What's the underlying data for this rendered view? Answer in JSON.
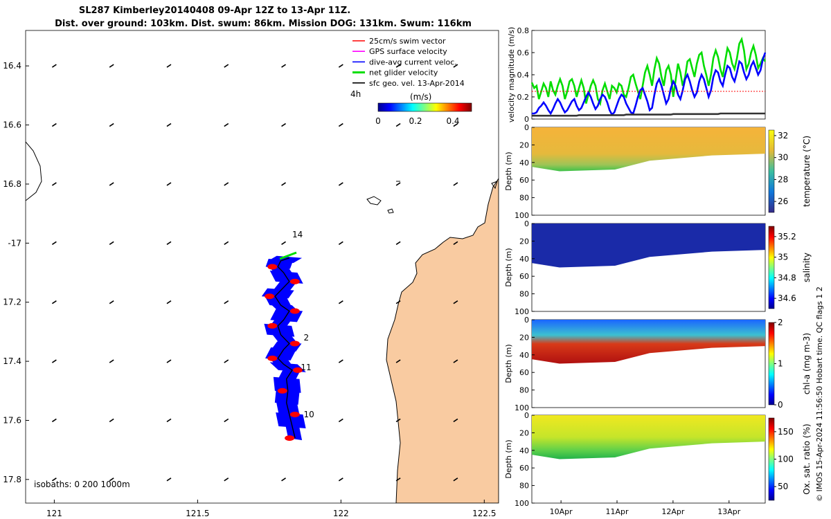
{
  "title_line1": "SL287 Kimberley20140408 09-Apr 12Z to 13-Apr 11Z.",
  "title_line2": "Dist. over ground: 103km. Dist. swum: 86km. Mission DOG: 131km. Swum: 116km",
  "credit": "© IMOS 15-Apr-2024 11:56:50 Hobart time. QC flags 1  2",
  "colors": {
    "land": "#f9cba1",
    "track_blue": "#0000ff",
    "track_red": "#ff0000",
    "swim": "#ff0000",
    "gps": "#ff00ff",
    "dive": "#0000ff",
    "net": "#00dd00",
    "sfc": "#000000"
  },
  "chart_data": [
    {
      "type": "map",
      "name": "track-map",
      "xlim": [
        120.9,
        122.55
      ],
      "ylim": [
        -17.88,
        -16.28
      ],
      "x_ticks": [
        121,
        121.5,
        122,
        122.5
      ],
      "x_tick_labels": [
        "121",
        "121.5",
        "122",
        "122.5"
      ],
      "y_ticks": [
        -16.4,
        -16.6,
        -16.8,
        -17.0,
        -17.2,
        -17.4,
        -17.6,
        -17.8
      ],
      "y_tick_labels": [
        "16.4",
        "16.6",
        "16.8",
        "-17",
        "17.2",
        "17.4",
        "17.6",
        "17.8"
      ],
      "legend": [
        {
          "label": "25cm/s swim vector",
          "color": "#ff0000"
        },
        {
          "label": "GPS surface velocity",
          "color": "#ff00ff"
        },
        {
          "label": "dive-avg current veloc.",
          "color": "#0000ff"
        },
        {
          "label": "net glider velocity",
          "color": "#00dd00"
        },
        {
          "label": "sfc geo. vel. 13-Apr-2014",
          "color": "#000000"
        }
      ],
      "legend_extra": "4h",
      "colorbar_title": "(m/s)",
      "colorbar_ticks": [
        "0",
        "0.2",
        "0.4"
      ],
      "colorbar_range": [
        0,
        0.5
      ],
      "isobath_label": "isobaths: 0   200  1000m",
      "day_labels": [
        {
          "text": "14",
          "lon": 121.83,
          "lat": -16.98
        },
        {
          "text": "2",
          "lon": 121.87,
          "lat": -17.33
        },
        {
          "text": "11",
          "lon": 121.86,
          "lat": -17.43
        },
        {
          "text": "10",
          "lon": 121.87,
          "lat": -17.59
        }
      ],
      "track": [
        [
          121.84,
          -17.66
        ],
        [
          121.83,
          -17.62
        ],
        [
          121.82,
          -17.58
        ],
        [
          121.81,
          -17.54
        ],
        [
          121.815,
          -17.5
        ],
        [
          121.81,
          -17.46
        ],
        [
          121.83,
          -17.43
        ],
        [
          121.8,
          -17.41
        ],
        [
          121.78,
          -17.39
        ],
        [
          121.8,
          -17.36
        ],
        [
          121.82,
          -17.34
        ],
        [
          121.79,
          -17.31
        ],
        [
          121.78,
          -17.28
        ],
        [
          121.8,
          -17.26
        ],
        [
          121.82,
          -17.23
        ],
        [
          121.79,
          -17.21
        ],
        [
          121.77,
          -17.18
        ],
        [
          121.79,
          -17.16
        ],
        [
          121.82,
          -17.13
        ],
        [
          121.8,
          -17.1
        ],
        [
          121.78,
          -17.08
        ],
        [
          121.79,
          -17.06
        ],
        [
          121.82,
          -17.05
        ]
      ],
      "geo_vel_grid_lon": [
        121.0,
        121.2,
        121.4,
        121.6,
        121.8,
        122.0,
        122.2,
        122.4
      ],
      "geo_vel_grid_lat": [
        -16.4,
        -16.6,
        -16.8,
        -17.0,
        -17.2,
        -17.4,
        -17.6,
        -17.8
      ]
    },
    {
      "type": "line",
      "name": "velocity-panel",
      "ylabel": "velocity magnitude (m/s)",
      "ylim": [
        0,
        0.8
      ],
      "y_ticks": [
        0,
        0.2,
        0.4,
        0.6,
        0.8
      ],
      "y_tick_labels": [
        "0",
        "0.2",
        "0.4",
        "0.6",
        "0.8"
      ],
      "x": [
        0,
        0.2,
        0.4,
        0.6,
        0.8,
        1.0,
        1.2,
        1.4,
        1.6,
        1.8,
        2.0,
        2.2,
        2.4,
        2.6,
        2.8,
        3.0,
        3.2,
        3.4,
        3.6,
        3.8,
        4.0,
        4.2,
        4.4,
        4.6,
        4.8,
        5.0,
        5.2,
        5.4,
        5.6,
        5.8,
        6.0,
        6.2,
        6.4,
        6.6,
        6.8,
        7.0,
        7.2,
        7.4,
        7.6,
        7.8,
        8.0,
        8.2,
        8.4,
        8.6,
        8.8,
        9.0,
        9.2,
        9.4,
        9.6,
        9.8,
        10.0,
        10.2,
        10.4,
        10.6,
        10.8,
        11.0,
        11.2,
        11.4,
        11.6,
        11.8,
        12.0,
        12.2,
        12.4,
        12.6,
        12.8,
        13.0,
        13.2,
        13.4,
        13.6,
        13.8,
        14.0,
        14.2,
        14.4,
        14.6,
        14.8,
        15.0,
        15.2,
        15.4,
        15.6,
        15.8,
        16.0,
        16.2,
        16.4,
        16.6,
        16.8,
        17.0,
        17.2,
        17.4,
        17.6,
        17.8,
        18.0,
        18.2,
        18.4,
        18.6,
        18.8,
        19.0,
        19.2,
        19.4,
        19.6,
        19.8
      ],
      "series": [
        {
          "name": "net glider velocity",
          "color": "#00dd00",
          "values": [
            0.33,
            0.28,
            0.3,
            0.18,
            0.25,
            0.32,
            0.28,
            0.2,
            0.34,
            0.26,
            0.22,
            0.3,
            0.36,
            0.3,
            0.18,
            0.25,
            0.34,
            0.36,
            0.3,
            0.2,
            0.28,
            0.35,
            0.28,
            0.14,
            0.22,
            0.3,
            0.35,
            0.3,
            0.18,
            0.14,
            0.26,
            0.32,
            0.25,
            0.18,
            0.3,
            0.28,
            0.24,
            0.32,
            0.3,
            0.22,
            0.2,
            0.28,
            0.38,
            0.4,
            0.32,
            0.25,
            0.18,
            0.3,
            0.42,
            0.48,
            0.4,
            0.3,
            0.45,
            0.55,
            0.5,
            0.38,
            0.3,
            0.44,
            0.48,
            0.4,
            0.2,
            0.35,
            0.5,
            0.42,
            0.3,
            0.38,
            0.52,
            0.54,
            0.46,
            0.38,
            0.5,
            0.58,
            0.6,
            0.48,
            0.4,
            0.3,
            0.4,
            0.55,
            0.62,
            0.56,
            0.45,
            0.38,
            0.52,
            0.64,
            0.6,
            0.5,
            0.45,
            0.55,
            0.68,
            0.72,
            0.62,
            0.45,
            0.5,
            0.6,
            0.66,
            0.58,
            0.46,
            0.5,
            0.55,
            0.52
          ]
        },
        {
          "name": "dive-avg current veloc.",
          "color": "#0000ff",
          "values": [
            0.05,
            0.05,
            0.06,
            0.1,
            0.12,
            0.15,
            0.12,
            0.08,
            0.05,
            0.09,
            0.14,
            0.18,
            0.15,
            0.1,
            0.06,
            0.08,
            0.12,
            0.16,
            0.18,
            0.12,
            0.08,
            0.1,
            0.15,
            0.2,
            0.24,
            0.2,
            0.14,
            0.09,
            0.12,
            0.18,
            0.22,
            0.2,
            0.15,
            0.08,
            0.04,
            0.06,
            0.12,
            0.18,
            0.22,
            0.2,
            0.14,
            0.1,
            0.06,
            0.05,
            0.12,
            0.2,
            0.26,
            0.28,
            0.22,
            0.16,
            0.08,
            0.1,
            0.22,
            0.32,
            0.36,
            0.3,
            0.22,
            0.14,
            0.18,
            0.28,
            0.34,
            0.3,
            0.22,
            0.18,
            0.26,
            0.36,
            0.4,
            0.34,
            0.26,
            0.2,
            0.24,
            0.34,
            0.4,
            0.36,
            0.28,
            0.2,
            0.26,
            0.38,
            0.44,
            0.42,
            0.34,
            0.3,
            0.4,
            0.48,
            0.46,
            0.38,
            0.34,
            0.42,
            0.52,
            0.5,
            0.42,
            0.36,
            0.4,
            0.48,
            0.52,
            0.46,
            0.4,
            0.44,
            0.54,
            0.6
          ]
        },
        {
          "name": "25cm/s swim vector",
          "color": "#ff0000",
          "values": [
            0.25,
            0.25,
            0.25,
            0.25,
            0.25,
            0.25,
            0.25,
            0.25,
            0.25,
            0.25,
            0.25,
            0.25,
            0.25,
            0.25,
            0.25,
            0.25,
            0.25,
            0.25,
            0.25,
            0.25,
            0.25,
            0.25,
            0.25,
            0.25,
            0.25,
            0.25,
            0.25,
            0.25,
            0.25,
            0.25,
            0.25,
            0.25,
            0.25,
            0.25,
            0.25,
            0.25,
            0.25,
            0.25,
            0.25,
            0.25,
            0.25,
            0.25,
            0.25,
            0.25,
            0.25,
            0.25,
            0.25,
            0.25,
            0.25,
            0.25,
            0.25,
            0.25,
            0.25,
            0.25,
            0.25,
            0.25,
            0.25,
            0.25,
            0.25,
            0.25,
            0.25,
            0.25,
            0.25,
            0.25,
            0.25,
            0.25,
            0.25,
            0.25,
            0.25,
            0.25,
            0.25,
            0.25,
            0.25,
            0.25,
            0.25,
            0.25,
            0.25,
            0.25,
            0.25,
            0.25,
            0.25,
            0.25,
            0.25,
            0.25,
            0.25,
            0.25,
            0.25,
            0.25,
            0.25,
            0.25,
            0.25,
            0.25,
            0.25,
            0.25,
            0.25,
            0.25,
            0.25,
            0.25,
            0.25,
            0.25
          ]
        },
        {
          "name": "sfc geo. vel.",
          "color": "#333333",
          "values": [
            0.03,
            0.03,
            0.03,
            0.03,
            0.03,
            0.03,
            0.03,
            0.03,
            0.03,
            0.03,
            0.03,
            0.03,
            0.03,
            0.03,
            0.03,
            0.03,
            0.03,
            0.03,
            0.03,
            0.03,
            0.035,
            0.035,
            0.035,
            0.035,
            0.035,
            0.035,
            0.035,
            0.035,
            0.035,
            0.035,
            0.035,
            0.035,
            0.035,
            0.035,
            0.035,
            0.035,
            0.035,
            0.035,
            0.035,
            0.035,
            0.04,
            0.04,
            0.04,
            0.04,
            0.04,
            0.04,
            0.04,
            0.04,
            0.04,
            0.04,
            0.04,
            0.04,
            0.04,
            0.04,
            0.04,
            0.04,
            0.04,
            0.04,
            0.04,
            0.04,
            0.045,
            0.045,
            0.045,
            0.045,
            0.045,
            0.045,
            0.045,
            0.045,
            0.045,
            0.045,
            0.045,
            0.045,
            0.045,
            0.045,
            0.045,
            0.045,
            0.045,
            0.045,
            0.045,
            0.045,
            0.05,
            0.05,
            0.05,
            0.05,
            0.05,
            0.05,
            0.05,
            0.05,
            0.05,
            0.05,
            0.05,
            0.05,
            0.05,
            0.05,
            0.05,
            0.05,
            0.05,
            0.05,
            0.05,
            0.05
          ]
        }
      ]
    },
    {
      "type": "heatmap",
      "name": "temperature-panel",
      "ylabel": "Depth (m)",
      "colorbar_label": "temperature (°C)",
      "ylim": [
        100,
        0
      ],
      "y_ticks": [
        0,
        20,
        40,
        60,
        80,
        100
      ],
      "y_tick_labels": [
        "0",
        "20",
        "40",
        "60",
        "80",
        "100"
      ],
      "colorbar_range": [
        25,
        32.5
      ],
      "colorbar_ticks": [
        26,
        28,
        30,
        32
      ],
      "colorbar_tick_labels": [
        "26",
        "28",
        "30",
        "32"
      ],
      "surface_value": 30.5,
      "deep_value": 28.2,
      "colormap": "parula"
    },
    {
      "type": "heatmap",
      "name": "salinity-panel",
      "ylabel": "Depth (m)",
      "colorbar_label": "salinity",
      "ylim": [
        100,
        0
      ],
      "y_ticks": [
        0,
        20,
        40,
        60,
        80,
        100
      ],
      "y_tick_labels": [
        "0",
        "20",
        "40",
        "60",
        "80",
        "100"
      ],
      "colorbar_range": [
        34.5,
        35.3
      ],
      "colorbar_ticks": [
        34.6,
        34.8,
        35,
        35.2
      ],
      "colorbar_tick_labels": [
        "34.6",
        "34.8",
        "35",
        "35.2"
      ],
      "surface_value": 34.55,
      "deep_value": 34.56,
      "colormap": "jet"
    },
    {
      "type": "heatmap",
      "name": "chla-panel",
      "ylabel": "Depth (m)",
      "colorbar_label": "chl-a (mg m-3)",
      "ylim": [
        100,
        0
      ],
      "y_ticks": [
        0,
        20,
        40,
        60,
        80,
        100
      ],
      "y_tick_labels": [
        "0",
        "20",
        "40",
        "60",
        "80",
        "100"
      ],
      "colorbar_range": [
        0,
        2
      ],
      "colorbar_ticks": [
        0,
        1,
        2
      ],
      "colorbar_tick_labels": [
        "0",
        "1",
        "2"
      ],
      "surface_value": 0.3,
      "deep_value": 1.9,
      "colormap": "jet"
    },
    {
      "type": "heatmap",
      "name": "oxygen-panel",
      "ylabel": "Depth (m)",
      "colorbar_label": "Ox. sat. ratio (%)",
      "ylim": [
        100,
        0
      ],
      "y_ticks": [
        0,
        20,
        40,
        60,
        80,
        100
      ],
      "y_tick_labels": [
        "0",
        "20",
        "40",
        "60",
        "80",
        "100"
      ],
      "colorbar_range": [
        25,
        175
      ],
      "colorbar_ticks": [
        50,
        100,
        150
      ],
      "colorbar_tick_labels": [
        "50",
        "100",
        "150"
      ],
      "surface_value": 140,
      "deep_value": 115,
      "colormap": "jet"
    }
  ],
  "time_axis": {
    "x_tick_labels": [
      "10Apr",
      "11Apr",
      "12Apr",
      "13Apr"
    ],
    "x_tick_pos": [
      0.125,
      0.365,
      0.605,
      0.845
    ]
  }
}
